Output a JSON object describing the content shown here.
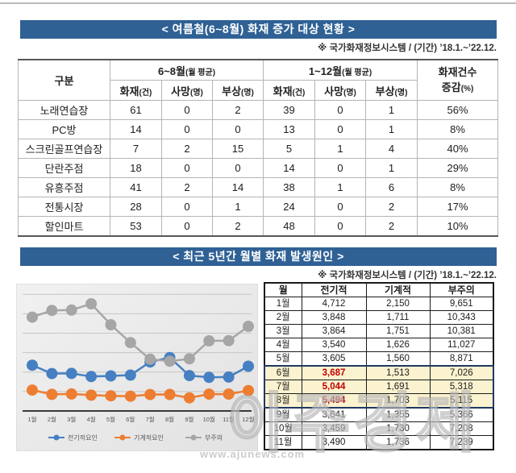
{
  "section1": {
    "title": "< 여름철(6~8월) 화재 증가 대상 현황 >",
    "source": "※ 국가화재정보시스템 / (기간) ’18.1.~’22.12.",
    "table": {
      "category_header": "구분",
      "group1": {
        "main": "6~8월",
        "unit": "(월 평균)"
      },
      "group2": {
        "main": "1~12월",
        "unit": "(월 평균)"
      },
      "sub_headers": [
        {
          "main": "화재",
          "unit": "(건)"
        },
        {
          "main": "사망",
          "unit": "(명)"
        },
        {
          "main": "부상",
          "unit": "(명)"
        },
        {
          "main": "화재",
          "unit": "(건)"
        },
        {
          "main": "사망",
          "unit": "(명)"
        },
        {
          "main": "부상",
          "unit": "(명)"
        }
      ],
      "last_col": {
        "line1": "화재건수",
        "line2_main": "증감",
        "line2_unit": "(%)"
      },
      "rows": [
        {
          "name": "노래연습장",
          "values": [
            "61",
            "0",
            "2",
            "39",
            "0",
            "1"
          ],
          "change": "56%"
        },
        {
          "name": "PC방",
          "values": [
            "14",
            "0",
            "0",
            "13",
            "0",
            "1"
          ],
          "change": "8%"
        },
        {
          "name": "스크린골프연습장",
          "values": [
            "7",
            "2",
            "15",
            "5",
            "1",
            "4"
          ],
          "change": "40%"
        },
        {
          "name": "단란주점",
          "values": [
            "18",
            "0",
            "0",
            "14",
            "0",
            "1"
          ],
          "change": "29%"
        },
        {
          "name": "유흥주점",
          "values": [
            "41",
            "2",
            "14",
            "38",
            "1",
            "6"
          ],
          "change": "8%"
        },
        {
          "name": "전통시장",
          "values": [
            "28",
            "0",
            "1",
            "24",
            "0",
            "2"
          ],
          "change": "17%"
        },
        {
          "name": "할인마트",
          "values": [
            "53",
            "0",
            "2",
            "48",
            "0",
            "2"
          ],
          "change": "10%"
        }
      ]
    }
  },
  "section2": {
    "title": "< 최근 5년간 월별 화재 발생원인 >",
    "source": "※ 국가화재정보시스템 / (기간) ’18.1.~’22.12.",
    "table": {
      "headers": [
        "월",
        "전기적",
        "기계적",
        "부주의"
      ],
      "rows": [
        {
          "month": "1월",
          "values": [
            "4,712",
            "2,150",
            "9,651"
          ],
          "highlight": false
        },
        {
          "month": "2월",
          "values": [
            "3,848",
            "1,711",
            "10,343"
          ],
          "highlight": false
        },
        {
          "month": "3월",
          "values": [
            "3,864",
            "1,751",
            "10,381"
          ],
          "highlight": false
        },
        {
          "month": "4월",
          "values": [
            "3,540",
            "1,626",
            "11,027"
          ],
          "highlight": false
        },
        {
          "month": "5월",
          "values": [
            "3,605",
            "1,560",
            "8,871"
          ],
          "highlight": false
        },
        {
          "month": "6월",
          "values": [
            "3,687",
            "1,513",
            "7,026"
          ],
          "highlight": true
        },
        {
          "month": "7월",
          "values": [
            "5,044",
            "1,691",
            "5,318"
          ],
          "highlight": true
        },
        {
          "month": "8월",
          "values": [
            "5,494",
            "1,703",
            "5,115"
          ],
          "highlight": true
        },
        {
          "month": "9월",
          "values": [
            "3,641",
            "1,355",
            "5,366"
          ],
          "highlight": false
        },
        {
          "month": "10월",
          "values": [
            "3,459",
            "1,730",
            "7,208"
          ],
          "highlight": false
        },
        {
          "month": "11월",
          "values": [
            "3,490",
            "1,736",
            "7,239"
          ],
          "highlight": false
        }
      ]
    }
  },
  "chart_data": {
    "type": "line",
    "x": [
      "1월",
      "2월",
      "3월",
      "4월",
      "5월",
      "6월",
      "7월",
      "8월",
      "9월",
      "10월",
      "11월",
      "12월"
    ],
    "series": [
      {
        "name": "전기적요인",
        "color": "#4680c2",
        "values": [
          4712,
          3848,
          3864,
          3540,
          3605,
          3687,
          5044,
          5494,
          3641,
          3459,
          3490,
          4600
        ]
      },
      {
        "name": "기계적요인",
        "color": "#ed7d31",
        "values": [
          2150,
          1711,
          1751,
          1626,
          1560,
          1513,
          1691,
          1703,
          1355,
          1730,
          1736,
          2100
        ]
      },
      {
        "name": "부주의",
        "color": "#a6a6a6",
        "values": [
          9651,
          10343,
          10381,
          11027,
          8871,
          7026,
          5318,
          5115,
          5366,
          7208,
          7239,
          8700
        ]
      }
    ],
    "ylim": [
      0,
      12600
    ],
    "grid_step": 2000,
    "grid": true,
    "legend_position": "bottom",
    "title": "",
    "xlabel": "",
    "ylabel": ""
  },
  "watermark": {
    "text": "아주경제",
    "site": "www.ajunews.com"
  }
}
